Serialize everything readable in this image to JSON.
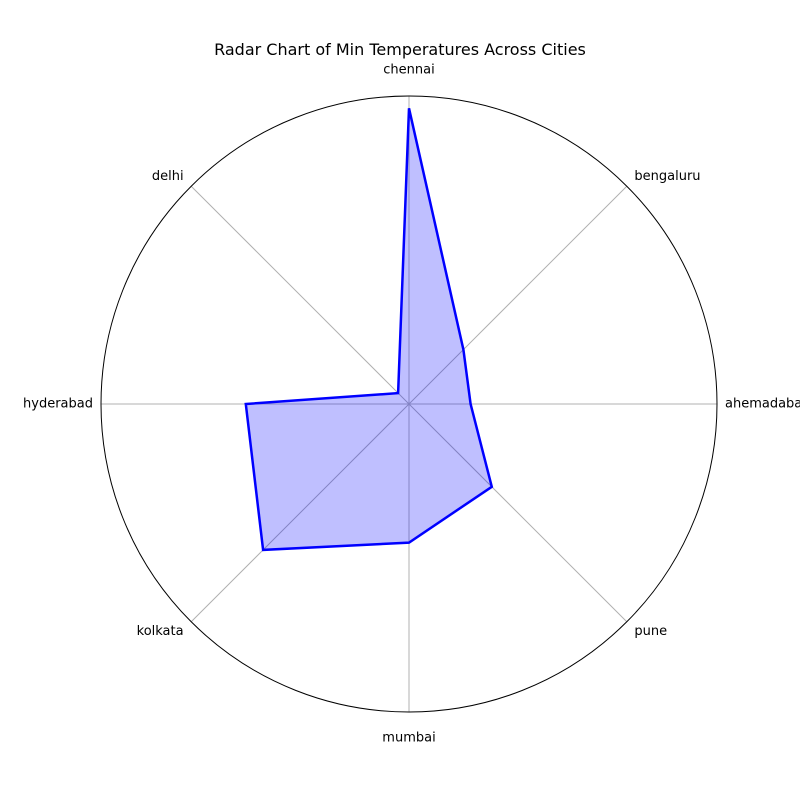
{
  "chart_data": {
    "type": "radar",
    "title": "Radar Chart of Min Temperatures Across Cities",
    "categories": [
      "chennai",
      "bengaluru",
      "ahemadabad",
      "pune",
      "mumbai",
      "kolkata",
      "hyderabad",
      "delhi"
    ],
    "series": [
      {
        "values": [
          0.96,
          0.25,
          0.2,
          0.38,
          0.45,
          0.67,
          0.53,
          0.05
        ]
      }
    ],
    "rlim": [
      0,
      1
    ],
    "grid": true,
    "legend": "none",
    "colors": {
      "line": "#0000ff",
      "fill": "#0000ff",
      "fill_opacity": 0.25,
      "grid": "#b0b0b0",
      "frame": "#000000"
    }
  }
}
